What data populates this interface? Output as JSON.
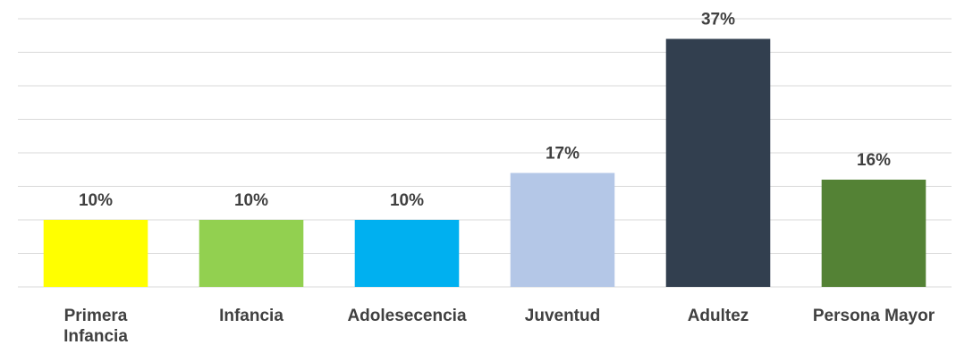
{
  "chart_data": {
    "type": "bar",
    "categories": [
      [
        "Primera",
        "Infancia"
      ],
      [
        "Infancia"
      ],
      [
        "Adolesecencia"
      ],
      [
        "Juventud"
      ],
      [
        "Adultez"
      ],
      [
        "Persona Mayor"
      ]
    ],
    "values": [
      10,
      10,
      10,
      17,
      37,
      16
    ],
    "data_labels": [
      "10%",
      "10%",
      "10%",
      "17%",
      "37%",
      "16%"
    ],
    "colors": [
      "#ffff00",
      "#92d050",
      "#00b0f0",
      "#b4c7e7",
      "#323f4f",
      "#548235"
    ],
    "title": "",
    "xlabel": "",
    "ylabel": "",
    "ylim": [
      0,
      40
    ],
    "gridlines": true,
    "legend": "none"
  }
}
